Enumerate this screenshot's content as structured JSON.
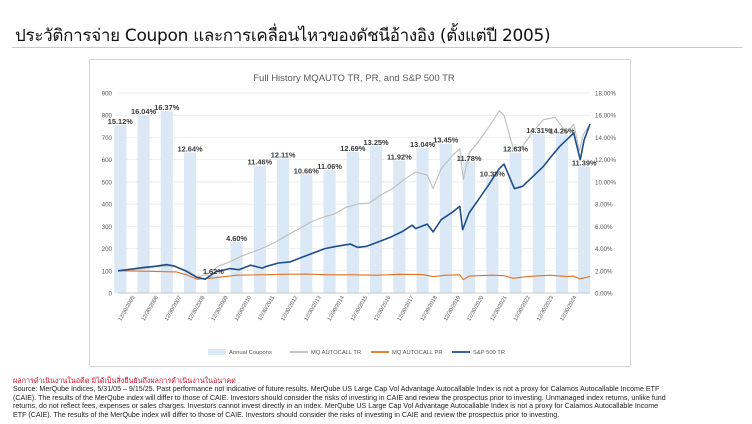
{
  "page": {
    "title": "ประวัติการจ่าย Coupon และการเคลื่อนไหวของดัชนีอ้างอิง (ตั้งแต่ปี 2005)",
    "disclaimer_red": "ผลการดำเนินงานในอดีต มิได้เป็นสิ่งยืนยันถึงผลการดำเนินงานในอนาคต",
    "footnote_lines": [
      "Source: MerQube Indices, 5/31/05 – 9/15/25. Past performance not indicative of future results. MerQube US Large Cap Vol Advantage Autocallable Index is not a proxy for Calamos Autocallable Income ETF",
      "(CAIE). The results of the MerQube index will differ to those of CAIE. Investors should consider the risks of investing in CAIE and review the prospectus prior to investing. Unmanaged index returns, unlike fund",
      "returns, do not reflect fees, expenses or sales charges. Investors cannot invest directly in an index. MerQube US Large Cap Vol Advantage Autocallable Index is not a proxy for Calamos Autocallable Income",
      "ETF (CAIE). The results of the MerQube index will differ to those of CAIE. Investors should consider the risks of investing in CAIE and review the prospectus prior to investing."
    ]
  },
  "chart_data": {
    "type": "bar+line",
    "title": "Full History MQAUTO TR, PR, and S&P 500 TR",
    "left_axis": {
      "ylim": [
        0,
        900
      ],
      "ticks": [
        0,
        100,
        200,
        300,
        400,
        500,
        600,
        700,
        800,
        900
      ]
    },
    "right_axis": {
      "ylim": [
        0,
        18
      ],
      "ticks": [
        "0.00%",
        "2.00%",
        "4.00%",
        "6.00%",
        "8.00%",
        "10.00%",
        "12.00%",
        "14.00%",
        "16.00%",
        "18.00%"
      ]
    },
    "x_labels": [
      "12/30/2005",
      "12/30/2006",
      "12/30/2007",
      "12/30/2008",
      "12/30/2009",
      "12/30/2010",
      "12/30/2011",
      "12/30/2012",
      "12/30/2013",
      "12/30/2014",
      "12/30/2015",
      "12/30/2016",
      "12/30/2017",
      "12/30/2018",
      "12/30/2019",
      "12/30/2020",
      "12/30/2021",
      "12/30/2022",
      "12/30/2023",
      "12/30/2024"
    ],
    "x_range": [
      2005.4,
      2025.7
    ],
    "coupons": {
      "name": "Annual Coupons",
      "color": "#dbe8f6",
      "years": [
        2005,
        2006,
        2007,
        2008,
        2009,
        2010,
        2011,
        2012,
        2013,
        2014,
        2015,
        2016,
        2017,
        2018,
        2019,
        2020,
        2021,
        2022,
        2023,
        2024,
        2025
      ],
      "values": [
        15.12,
        16.04,
        16.37,
        12.64,
        1.62,
        4.6,
        11.46,
        12.11,
        10.66,
        11.06,
        12.69,
        13.25,
        11.92,
        13.04,
        13.45,
        11.78,
        10.38,
        12.63,
        14.31,
        14.26,
        11.39
      ],
      "labels": [
        "15.12%",
        "16.04%",
        "16.37%",
        "12.64%",
        "1.62%",
        "4.60%",
        "11.46%",
        "12.11%",
        "10.66%",
        "11.06%",
        "12.69%",
        "13.25%",
        "11.92%",
        "13.04%",
        "13.45%",
        "11.78%",
        "10.38%",
        "12.63%",
        "14.31%",
        "14.26%",
        "11.39%"
      ]
    },
    "series": [
      {
        "name": "MQ AUTOCALL TR",
        "color": "#bdbdbd",
        "x": [
          2005.4,
          2006.0,
          2006.5,
          2007.0,
          2007.5,
          2007.9,
          2008.4,
          2008.8,
          2009.2,
          2009.7,
          2010.2,
          2010.7,
          2011.2,
          2011.7,
          2012.2,
          2012.7,
          2013.2,
          2013.7,
          2014.2,
          2014.7,
          2015.2,
          2015.7,
          2016.2,
          2016.7,
          2017.2,
          2017.7,
          2018.2,
          2018.7,
          2018.95,
          2019.3,
          2019.8,
          2020.1,
          2020.25,
          2020.5,
          2020.9,
          2021.3,
          2021.8,
          2022.0,
          2022.4,
          2022.8,
          2023.2,
          2023.7,
          2024.2,
          2024.7,
          2025.0,
          2025.25,
          2025.4,
          2025.7
        ],
        "values": [
          100,
          104,
          110,
          118,
          122,
          118,
          100,
          72,
          82,
          120,
          140,
          165,
          185,
          205,
          230,
          262,
          290,
          320,
          340,
          355,
          385,
          400,
          405,
          440,
          470,
          510,
          545,
          530,
          470,
          560,
          620,
          650,
          510,
          630,
          680,
          740,
          820,
          800,
          650,
          660,
          720,
          780,
          790,
          720,
          760,
          640,
          710,
          760
        ]
      },
      {
        "name": "MQ AUTOCALL PR",
        "color": "#e37222",
        "x": [
          2005.4,
          2006.5,
          2007.9,
          2008.4,
          2008.8,
          2009.5,
          2010.5,
          2011.5,
          2012.5,
          2013.5,
          2014.5,
          2015.5,
          2016.5,
          2017.5,
          2018.5,
          2018.95,
          2019.5,
          2020.1,
          2020.25,
          2020.5,
          2021.5,
          2022.0,
          2022.4,
          2023.0,
          2024.0,
          2024.7,
          2025.0,
          2025.25,
          2025.7
        ],
        "values": [
          100,
          98,
          95,
          80,
          62,
          68,
          80,
          82,
          84,
          85,
          82,
          82,
          80,
          84,
          83,
          74,
          80,
          82,
          60,
          76,
          80,
          78,
          66,
          74,
          80,
          74,
          76,
          64,
          74
        ]
      },
      {
        "name": "S&P 500 TR",
        "color": "#1f4e8c",
        "x": [
          2005.4,
          2006.0,
          2006.5,
          2007.0,
          2007.5,
          2007.8,
          2008.3,
          2008.8,
          2009.15,
          2009.6,
          2010.2,
          2010.6,
          2011.1,
          2011.6,
          2011.8,
          2012.3,
          2012.8,
          2013.3,
          2013.8,
          2014.3,
          2014.8,
          2015.4,
          2015.7,
          2016.1,
          2016.6,
          2017.1,
          2017.6,
          2018.05,
          2018.2,
          2018.7,
          2018.95,
          2019.3,
          2019.8,
          2020.1,
          2020.22,
          2020.5,
          2020.9,
          2021.3,
          2021.8,
          2022.0,
          2022.45,
          2022.8,
          2023.2,
          2023.7,
          2024.0,
          2024.4,
          2024.8,
          2025.0,
          2025.28,
          2025.45,
          2025.7
        ],
        "values": [
          100,
          108,
          115,
          120,
          128,
          122,
          100,
          70,
          62,
          95,
          110,
          105,
          125,
          112,
          120,
          135,
          140,
          160,
          180,
          200,
          210,
          220,
          205,
          210,
          230,
          250,
          275,
          305,
          290,
          310,
          275,
          330,
          365,
          390,
          285,
          360,
          420,
          480,
          560,
          580,
          470,
          480,
          520,
          570,
          610,
          660,
          700,
          720,
          600,
          690,
          760
        ]
      }
    ],
    "legend": [
      "Annual Coupons",
      "MQ AUTOCALL TR",
      "MQ AUTOCALL PR",
      "S&P 500 TR"
    ]
  }
}
